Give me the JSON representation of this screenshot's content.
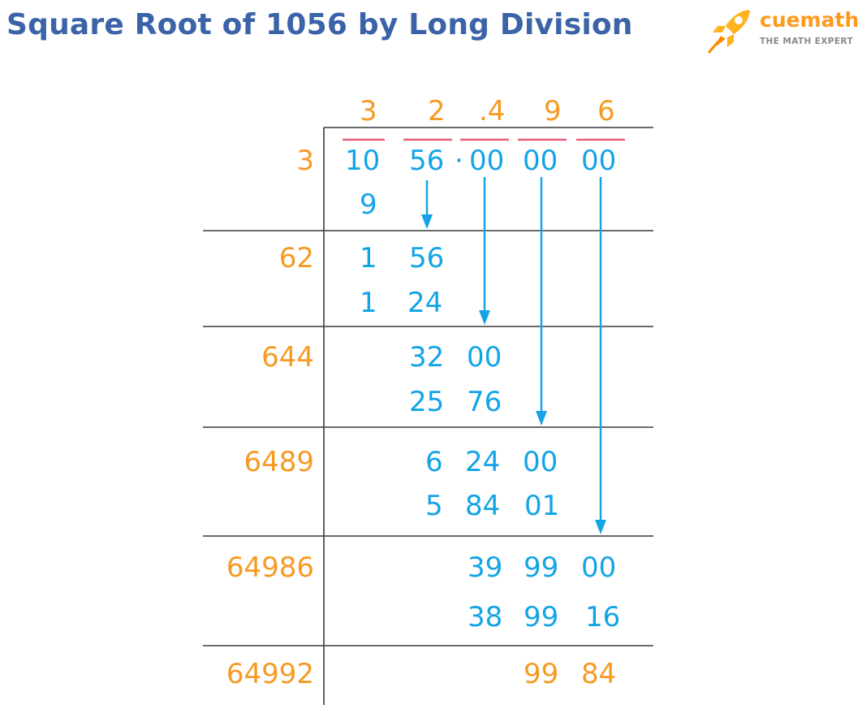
{
  "title": "Square Root of 1056 by Long Division",
  "brand": {
    "name": "cuemath",
    "tagline": "THE MATH EXPERT",
    "logo_icon": "rocket-icon"
  },
  "colors": {
    "title": "#3a63a8",
    "orange": "#f59a23",
    "blue": "#13a4e6",
    "pair_bar": "#e8617a",
    "grid": "#3a3a3a"
  },
  "quotient": [
    "3",
    "2",
    ".4",
    "9",
    "6"
  ],
  "dividend": {
    "pair1": "10",
    "pair2": "56",
    "dot": "·",
    "pair3": "00",
    "pair4": "00",
    "pair5": "00"
  },
  "divisors": [
    "3",
    "62",
    "644",
    "6489",
    "64986",
    "64992"
  ],
  "steps": {
    "s1_sub": "9",
    "s2_a": "1",
    "s2_b": "56",
    "s2_c": "1",
    "s2_d": "24",
    "s3_a": "32",
    "s3_b": "00",
    "s3_c": "25",
    "s3_d": "76",
    "s4_a": "6",
    "s4_b": "24",
    "s4_c": "00",
    "s4_d": "5",
    "s4_e": "84",
    "s4_f": "01",
    "s5_a": "39",
    "s5_b": "99",
    "s5_c": "00",
    "s5_d": "38",
    "s5_e": "99",
    "s5_f": "16",
    "rem_a": "99",
    "rem_b": "84"
  }
}
